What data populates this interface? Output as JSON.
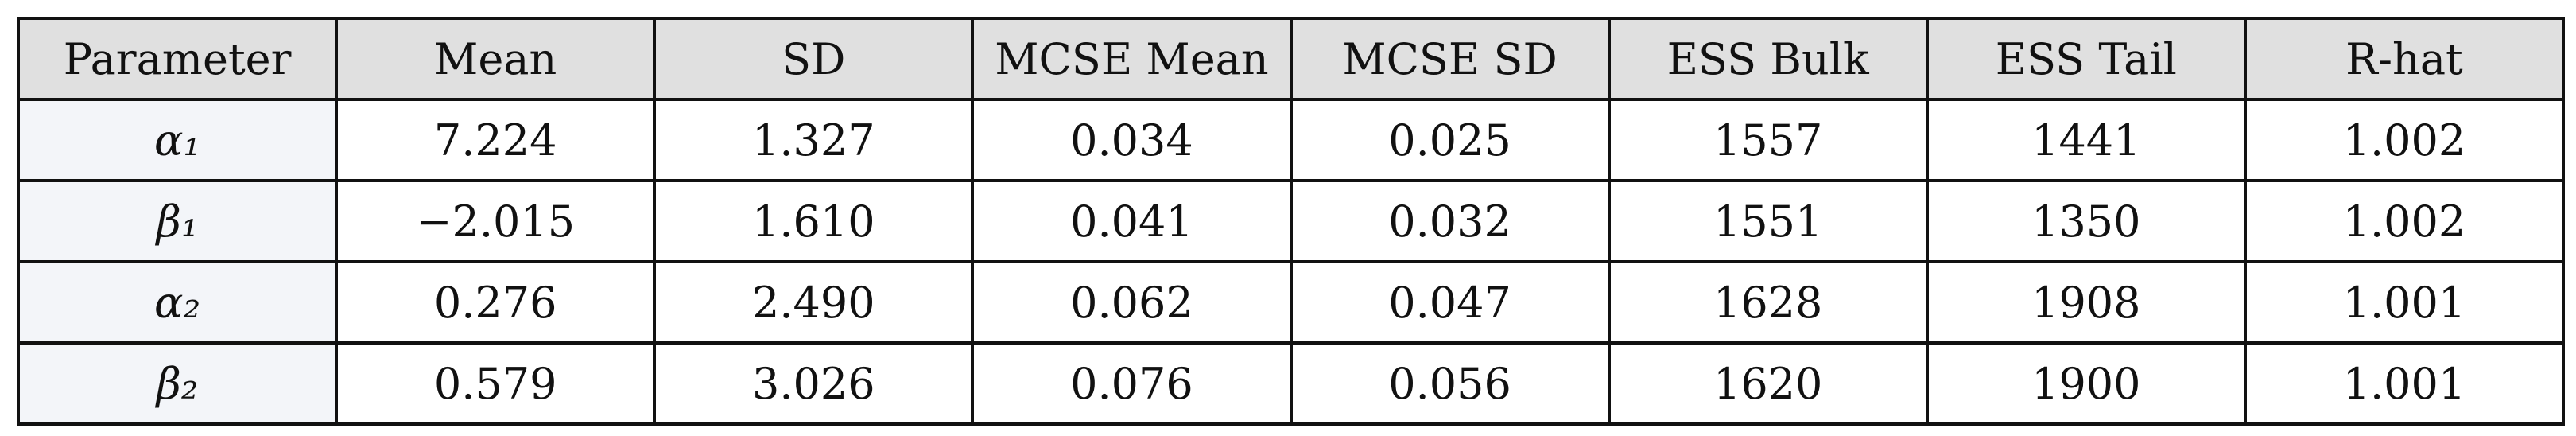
{
  "table": {
    "header": [
      "Parameter",
      "Mean",
      "SD",
      "MCSE Mean",
      "MCSE SD",
      "ESS Bulk",
      "ESS Tail",
      "R-hat"
    ],
    "rows": [
      [
        "α₁",
        "7.224",
        "1.327",
        "0.034",
        "0.025",
        "1557",
        "1441",
        "1.002"
      ],
      [
        "β₁",
        "−2.015",
        "1.610",
        "0.041",
        "0.032",
        "1551",
        "1350",
        "1.002"
      ],
      [
        "α₂",
        "0.276",
        "2.490",
        "0.062",
        "0.047",
        "1628",
        "1908",
        "1.001"
      ],
      [
        "β₂",
        "0.579",
        "3.026",
        "0.076",
        "0.056",
        "1620",
        "1900",
        "1.001"
      ]
    ]
  }
}
